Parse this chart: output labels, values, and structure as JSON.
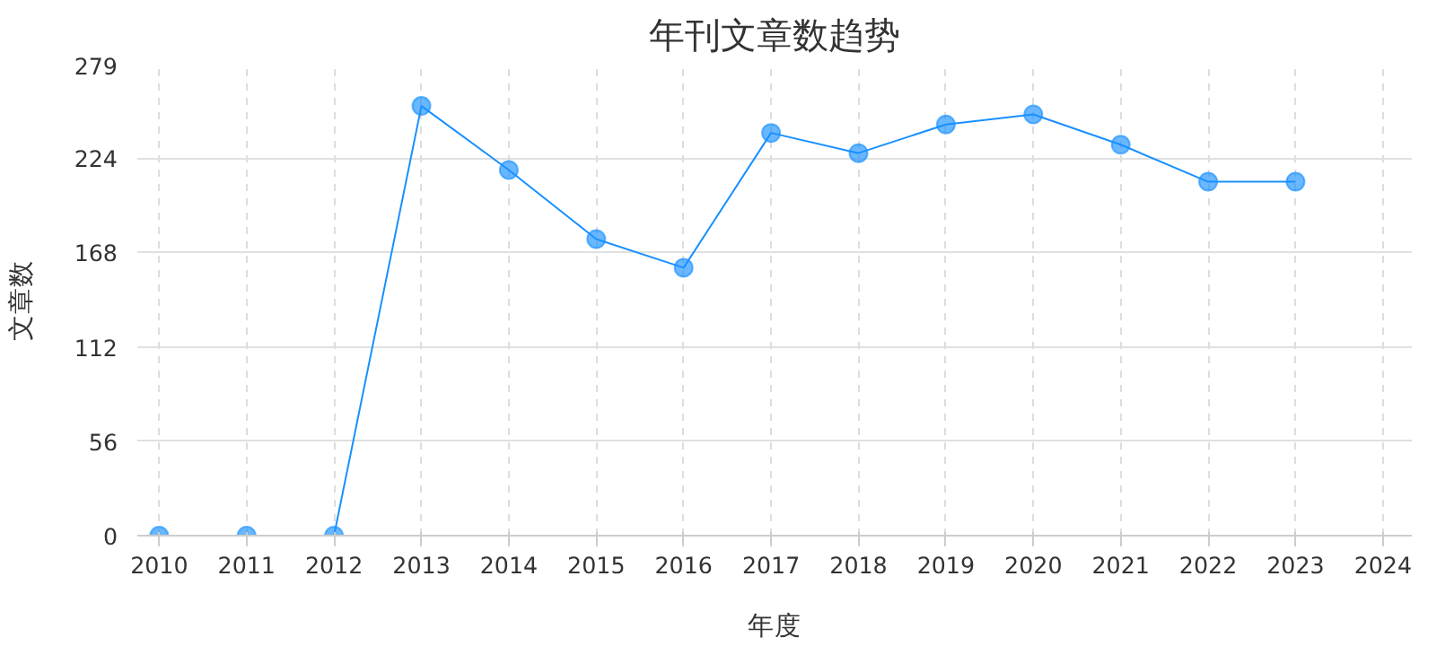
{
  "chart_data": {
    "type": "line",
    "title": "年刊文章数趋势",
    "xlabel": "年度",
    "ylabel": "文章数",
    "x": [
      2010,
      2011,
      2012,
      2013,
      2014,
      2015,
      2016,
      2017,
      2018,
      2019,
      2020,
      2021,
      2022,
      2023
    ],
    "series": [
      {
        "color": "#1890ff",
        "values": [
          0,
          0,
          0,
          255,
          217,
          176,
          159,
          239,
          227,
          244,
          250,
          232,
          210,
          210
        ]
      }
    ],
    "xlim": [
      2009.75,
      2024.33
    ],
    "xticks": [
      2010,
      2011,
      2012,
      2013,
      2014,
      2015,
      2016,
      2017,
      2018,
      2019,
      2020,
      2021,
      2022,
      2023,
      2024
    ],
    "ylim": [
      0,
      279
    ],
    "yticks": [
      0,
      56,
      112,
      168,
      224,
      279
    ],
    "grid": true,
    "marker": "circle",
    "line_style": "solid"
  }
}
